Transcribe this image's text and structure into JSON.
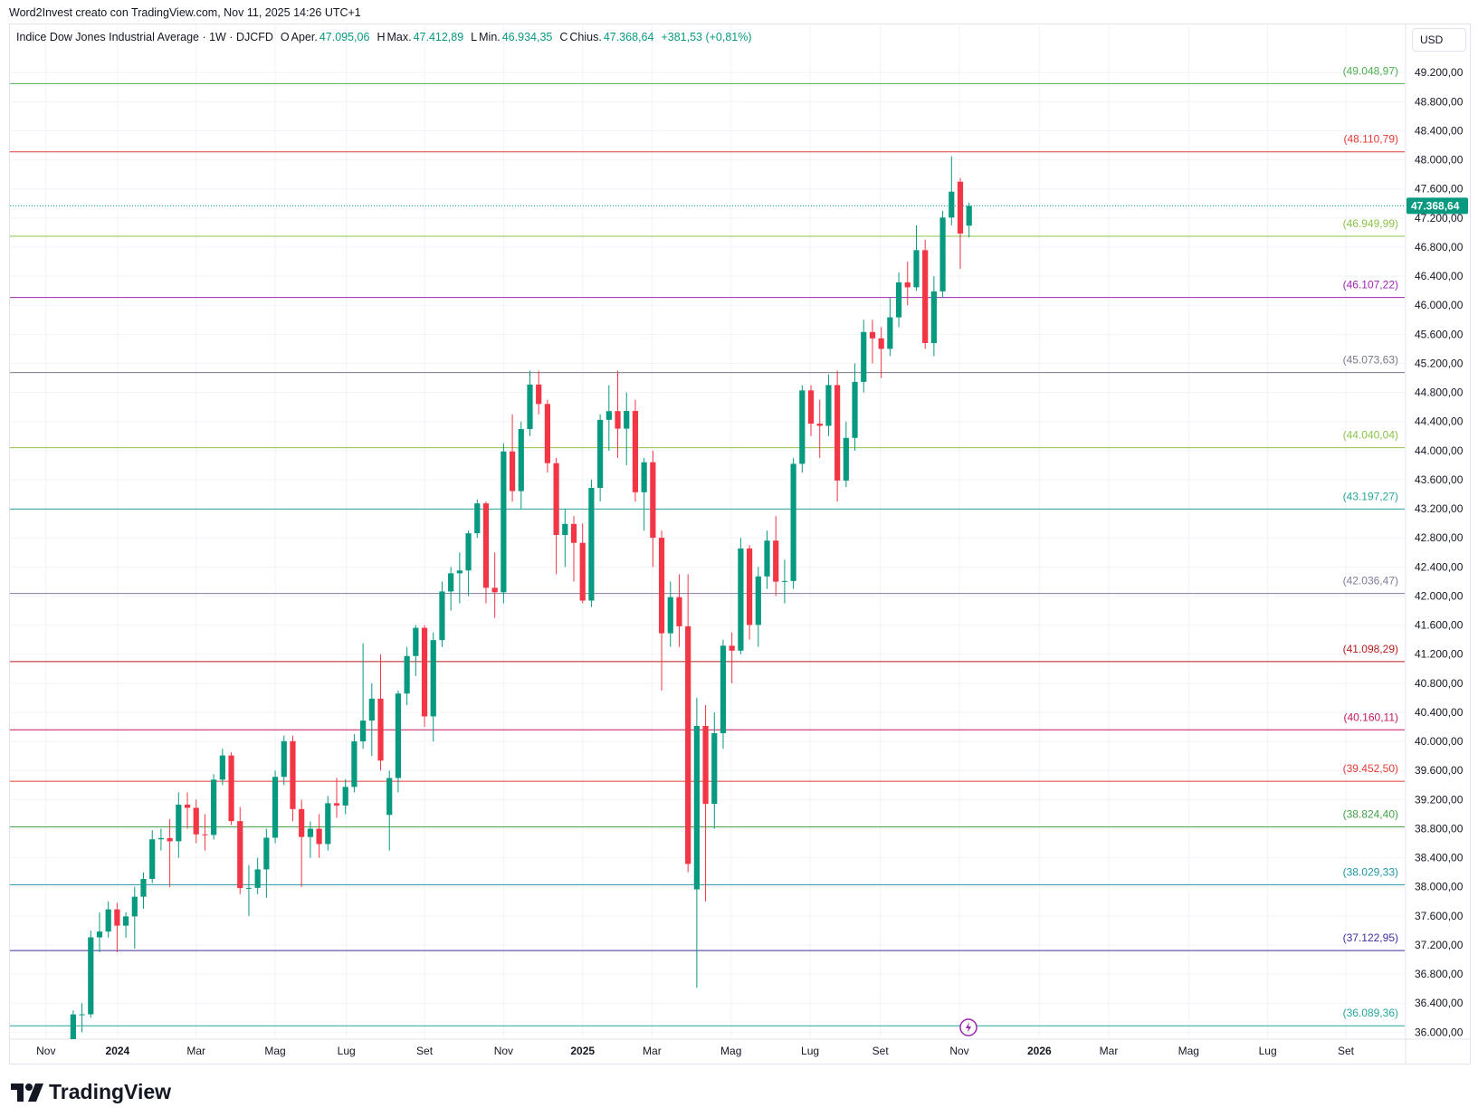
{
  "header": {
    "credit": "Word2Invest creato con TradingView.com, Nov 11, 2025 14:26 UTC+1",
    "currency": "USD",
    "logo": "TradingView"
  },
  "chart_data": {
    "type": "candlestick",
    "title": "Indice Dow Jones Industrial Average · 1W · DJCFD",
    "ohlc_legend": [
      {
        "key": "O",
        "label": "Aper.",
        "value": "47.095,06"
      },
      {
        "key": "H",
        "label": "Max.",
        "value": "47.412,89"
      },
      {
        "key": "L",
        "label": "Min.",
        "value": "46.934,35"
      },
      {
        "key": "C",
        "label": "Chius.",
        "value": "47.368,64"
      }
    ],
    "change": "+381,53 (+0,81%)",
    "up_color": "#089981",
    "down_color": "#f23645",
    "open": [
      35390,
      36245,
      36247,
      37305,
      37385,
      37690,
      37466,
      37593,
      37864,
      38109,
      38654,
      38671,
      38627,
      39131,
      39087,
      38722,
      38714,
      39475,
      39807,
      38904,
      37983,
      37986,
      38240,
      38676,
      39513,
      40004,
      39070,
      38686,
      38799,
      38589,
      39150,
      39119,
      39375,
      40001,
      40287,
      40589,
      38990,
      39497,
      40659,
      41175,
      41563,
      40345,
      41394,
      42063,
      42313,
      42352,
      42864,
      43275,
      42114,
      42052,
      43989,
      43444,
      44297,
      44910,
      44642,
      43828,
      42840,
      42992,
      42732,
      41938,
      43488,
      44424,
      44544,
      44303,
      44546,
      43428,
      43841,
      42802,
      41488,
      41985,
      41584,
      37965,
      40213,
      39142,
      40114,
      41317,
      41249,
      42655,
      41603,
      42270,
      42763,
      42198,
      42207,
      43819,
      44829,
      44372,
      44342,
      44902,
      43589,
      44176,
      44946,
      45632,
      45545,
      45401,
      45834,
      46315,
      46247,
      46758,
      45480,
      46191,
      47207,
      47700,
      47095.06
    ],
    "high": [
      36300,
      36400,
      37400,
      37650,
      37800,
      37780,
      37650,
      38000,
      38200,
      38780,
      38800,
      38930,
      39300,
      39300,
      39200,
      39000,
      39550,
      39900,
      39850,
      39100,
      38300,
      38400,
      38800,
      39600,
      40080,
      40080,
      39200,
      38900,
      39000,
      39250,
      39500,
      39480,
      40100,
      41350,
      40800,
      41200,
      39600,
      40700,
      41300,
      41600,
      41600,
      41500,
      42200,
      42400,
      42600,
      42900,
      43330,
      43300,
      42600,
      44100,
      44500,
      44400,
      45100,
      45100,
      44700,
      43900,
      43200,
      43100,
      43000,
      43600,
      44500,
      44900,
      45100,
      44800,
      44700,
      43900,
      44000,
      42900,
      42200,
      42300,
      42300,
      40600,
      40500,
      40400,
      41400,
      41500,
      42800,
      42700,
      42400,
      42900,
      43100,
      42500,
      43900,
      44900,
      44900,
      44700,
      45050,
      45100,
      44400,
      45200,
      45800,
      45800,
      45700,
      46100,
      46450,
      46600,
      47100,
      46900,
      46400,
      47300,
      48050,
      47750,
      47412.89
    ],
    "low": [
      35300,
      36000,
      36200,
      37100,
      37300,
      37100,
      37300,
      37150,
      37700,
      38050,
      38500,
      38000,
      38400,
      38800,
      38600,
      38500,
      38650,
      39400,
      38850,
      37900,
      37600,
      37900,
      37850,
      38600,
      39400,
      38900,
      38000,
      38400,
      38400,
      38500,
      38950,
      39000,
      39300,
      39900,
      39800,
      39600,
      38500,
      39300,
      40500,
      40900,
      40200,
      40000,
      41300,
      41800,
      41900,
      42000,
      42800,
      41900,
      41700,
      41900,
      43300,
      43200,
      44200,
      44500,
      43700,
      42300,
      42400,
      42200,
      41900,
      41850,
      43300,
      44000,
      43900,
      43800,
      43300,
      42900,
      42400,
      40700,
      41300,
      41300,
      38200,
      36612,
      37800,
      38800,
      39900,
      40800,
      41200,
      41400,
      41300,
      42100,
      42000,
      41900,
      42100,
      43700,
      44200,
      43900,
      44200,
      43300,
      43500,
      44000,
      44800,
      45200,
      45000,
      45300,
      45700,
      46000,
      46200,
      45400,
      45300,
      46100,
      47100,
      46500,
      46934.35
    ],
    "close": [
      36245,
      36247,
      37305,
      37385,
      37690,
      37466,
      37593,
      37864,
      38109,
      38654,
      38671,
      38627,
      39131,
      39087,
      38722,
      38714,
      39475,
      39807,
      38904,
      37983,
      37986,
      38240,
      38676,
      39513,
      40004,
      39070,
      38686,
      38799,
      38589,
      39150,
      39119,
      39375,
      40001,
      40287,
      40589,
      39737,
      39497,
      40659,
      41175,
      41563,
      40345,
      41394,
      42063,
      42313,
      42352,
      42864,
      43275,
      42114,
      42052,
      43989,
      43444,
      44297,
      44910,
      44642,
      43828,
      42840,
      42992,
      42732,
      41938,
      43488,
      44424,
      44544,
      44303,
      44546,
      43428,
      43841,
      42802,
      41488,
      41985,
      41584,
      38315,
      40213,
      39142,
      40114,
      41317,
      41249,
      42655,
      41603,
      42270,
      42763,
      42198,
      42207,
      43819,
      44829,
      44372,
      44342,
      44902,
      43589,
      44176,
      44946,
      45632,
      45545,
      45401,
      45834,
      46315,
      46247,
      46758,
      45480,
      46191,
      47207,
      47563,
      46987,
      47368.64
    ],
    "last_price": {
      "value": 47368.64,
      "label": "47.368,64"
    },
    "levels": [
      {
        "value": 49048.97,
        "label": "(49.048,97)",
        "color": "#4caf50"
      },
      {
        "value": 48110.79,
        "label": "(48.110,79)",
        "color": "#e53935"
      },
      {
        "value": 46949.99,
        "label": "(46.949,99)",
        "color": "#8bc34a"
      },
      {
        "value": 46107.22,
        "label": "(46.107,22)",
        "color": "#9c27b0"
      },
      {
        "value": 45073.63,
        "label": "(45.073,63)",
        "color": "#787b86"
      },
      {
        "value": 44040.04,
        "label": "(44.040,04)",
        "color": "#8bc34a"
      },
      {
        "value": 43197.27,
        "label": "(43.197,27)",
        "color": "#26a69a"
      },
      {
        "value": 42036.47,
        "label": "(42.036,47)",
        "color": "#7e7e9a"
      },
      {
        "value": 41098.29,
        "label": "(41.098,29)",
        "color": "#b71c1c"
      },
      {
        "value": 40160.11,
        "label": "(40.160,11)",
        "color": "#c2185b"
      },
      {
        "value": 39452.5,
        "label": "(39.452,50)",
        "color": "#e53935"
      },
      {
        "value": 38824.4,
        "label": "(38.824,40)",
        "color": "#43a047"
      },
      {
        "value": 38029.33,
        "label": "(38.029,33)",
        "color": "#2196a3"
      },
      {
        "value": 37122.95,
        "label": "(37.122,95)",
        "color": "#3f2ea0"
      },
      {
        "value": 36089.36,
        "label": "(36.089,36)",
        "color": "#26a69a"
      }
    ],
    "xlim": [
      -7.2,
      151.7
    ],
    "xticks": [
      {
        "value": -3.1,
        "label": "Nov"
      },
      {
        "value": 5.05,
        "label": "2024"
      },
      {
        "value": 14,
        "label": "Mar"
      },
      {
        "value": 23,
        "label": "Mag"
      },
      {
        "value": 31.1,
        "label": "Lug"
      },
      {
        "value": 40,
        "label": "Set"
      },
      {
        "value": 49,
        "label": "Nov"
      },
      {
        "value": 58,
        "label": "2025"
      },
      {
        "value": 65.9,
        "label": "Mar"
      },
      {
        "value": 74.9,
        "label": "Mag"
      },
      {
        "value": 83.9,
        "label": "Lug"
      },
      {
        "value": 91.9,
        "label": "Set"
      },
      {
        "value": 100.9,
        "label": "Nov"
      },
      {
        "value": 110,
        "label": "2026"
      },
      {
        "value": 117.9,
        "label": "Mar"
      },
      {
        "value": 127,
        "label": "Mag"
      },
      {
        "value": 136,
        "label": "Lug"
      },
      {
        "value": 144.9,
        "label": "Set"
      }
    ],
    "ylim": [
      35905,
      49863
    ],
    "yticks": [
      {
        "value": 36000,
        "label": "36.000,00"
      },
      {
        "value": 36400,
        "label": "36.400,00"
      },
      {
        "value": 36800,
        "label": "36.800,00"
      },
      {
        "value": 37200,
        "label": "37.200,00"
      },
      {
        "value": 37600,
        "label": "37.600,00"
      },
      {
        "value": 38000,
        "label": "38.000,00"
      },
      {
        "value": 38400,
        "label": "38.400,00"
      },
      {
        "value": 38800,
        "label": "38.800,00"
      },
      {
        "value": 39200,
        "label": "39.200,00"
      },
      {
        "value": 39600,
        "label": "39.600,00"
      },
      {
        "value": 40000,
        "label": "40.000,00"
      },
      {
        "value": 40400,
        "label": "40.400,00"
      },
      {
        "value": 40800,
        "label": "40.800,00"
      },
      {
        "value": 41200,
        "label": "41.200,00"
      },
      {
        "value": 41600,
        "label": "41.600,00"
      },
      {
        "value": 42000,
        "label": "42.000,00"
      },
      {
        "value": 42400,
        "label": "42.400,00"
      },
      {
        "value": 42800,
        "label": "42.800,00"
      },
      {
        "value": 43200,
        "label": "43.200,00"
      },
      {
        "value": 43600,
        "label": "43.600,00"
      },
      {
        "value": 44000,
        "label": "44.000,00"
      },
      {
        "value": 44400,
        "label": "44.400,00"
      },
      {
        "value": 44800,
        "label": "44.800,00"
      },
      {
        "value": 45200,
        "label": "45.200,00"
      },
      {
        "value": 45600,
        "label": "45.600,00"
      },
      {
        "value": 46000,
        "label": "46.000,00"
      },
      {
        "value": 46400,
        "label": "46.400,00"
      },
      {
        "value": 46800,
        "label": "46.800,00"
      },
      {
        "value": 47200,
        "label": "47.200,00"
      },
      {
        "value": 47600,
        "label": "47.600,00"
      },
      {
        "value": 48000,
        "label": "48.000,00"
      },
      {
        "value": 48400,
        "label": "48.400,00"
      },
      {
        "value": 48800,
        "label": "48.800,00"
      },
      {
        "value": 49200,
        "label": "49.200,00"
      }
    ],
    "grid": true
  }
}
